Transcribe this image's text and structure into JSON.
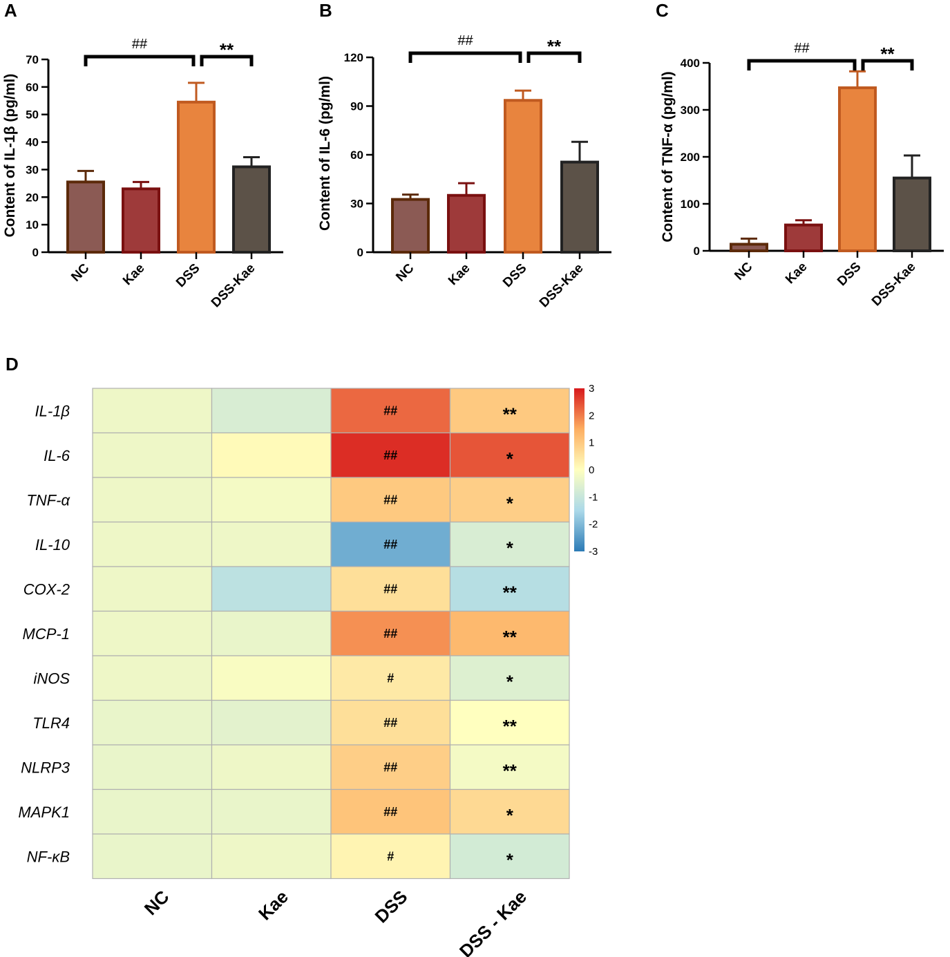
{
  "chart_data": [
    {
      "panel": "A",
      "type": "bar",
      "ylabel": "Content of IL-1β (pg/ml)",
      "categories": [
        "NC",
        "Kae",
        "DSS",
        "DSS-Kae"
      ],
      "values": [
        25.5,
        23,
        54.5,
        31
      ],
      "errors": [
        4,
        2.5,
        7,
        3.5
      ],
      "colors": [
        "#8b5a54",
        "#9e3a3a",
        "#e8843e",
        "#5c5248"
      ],
      "edge_colors": [
        "#5c2a0a",
        "#7a1010",
        "#c05a20",
        "#222222"
      ],
      "ylim": [
        0,
        70
      ],
      "yticks": [
        "0",
        "10",
        "20",
        "30",
        "40",
        "50",
        "60",
        "70"
      ],
      "brackets": [
        {
          "from": 0,
          "to": 2,
          "label": "##"
        },
        {
          "from": 2,
          "to": 3,
          "label": "**"
        }
      ]
    },
    {
      "panel": "B",
      "type": "bar",
      "ylabel": "Content of IL-6 (pg/ml)",
      "categories": [
        "NC",
        "Kae",
        "DSS",
        "DSS-Kae"
      ],
      "values": [
        32.5,
        35,
        93.5,
        55.5
      ],
      "errors": [
        3,
        7.5,
        6,
        12.5
      ],
      "colors": [
        "#8b5a54",
        "#9e3a3a",
        "#e8843e",
        "#5c5248"
      ],
      "edge_colors": [
        "#5c2a0a",
        "#7a1010",
        "#c05a20",
        "#222222"
      ],
      "ylim": [
        0,
        120
      ],
      "yticks": [
        "0",
        "30",
        "60",
        "90",
        "120"
      ],
      "brackets": [
        {
          "from": 0,
          "to": 2,
          "label": "##"
        },
        {
          "from": 2,
          "to": 3,
          "label": "**"
        }
      ]
    },
    {
      "panel": "C",
      "type": "bar",
      "ylabel": "Content of TNF-α (pg/ml)",
      "categories": [
        "NC",
        "Kae",
        "DSS",
        "DSS-Kae"
      ],
      "values": [
        14,
        55,
        347,
        155
      ],
      "errors": [
        12,
        10,
        35,
        48
      ],
      "colors": [
        "#8b5a54",
        "#9e3a3a",
        "#e8843e",
        "#5c5248"
      ],
      "edge_colors": [
        "#5c2a0a",
        "#7a1010",
        "#c05a20",
        "#222222"
      ],
      "ylim": [
        0,
        400
      ],
      "yticks": [
        "0",
        "100",
        "200",
        "300",
        "400"
      ],
      "brackets": [
        {
          "from": 0,
          "to": 2,
          "label": "##"
        },
        {
          "from": 2,
          "to": 3,
          "label": "**"
        }
      ]
    },
    {
      "panel": "D",
      "type": "heatmap",
      "rows": [
        "IL-1β",
        "IL-6",
        "TNF-α",
        "IL-10",
        "COX-2",
        "MCP-1",
        "iNOS",
        "TLR4",
        "NLRP3",
        "MAPK1",
        "NF-κB"
      ],
      "columns": [
        "NC",
        "Kae",
        "DSS",
        "DSS - Kae"
      ],
      "values": [
        [
          -0.3,
          -0.7,
          2.2,
          1.0
        ],
        [
          -0.3,
          0.1,
          2.8,
          2.4
        ],
        [
          -0.3,
          -0.2,
          1.0,
          0.9
        ],
        [
          -0.3,
          -0.3,
          -2.2,
          -0.7
        ],
        [
          -0.3,
          -1.2,
          0.6,
          -1.3
        ],
        [
          -0.3,
          -0.4,
          1.8,
          1.3
        ],
        [
          -0.3,
          -0.1,
          0.4,
          -0.6
        ],
        [
          -0.4,
          -0.5,
          0.6,
          0.0
        ],
        [
          -0.4,
          -0.3,
          0.9,
          -0.2
        ],
        [
          -0.4,
          -0.4,
          1.1,
          0.7
        ],
        [
          -0.4,
          -0.3,
          0.2,
          -0.8
        ]
      ],
      "annotations": [
        [
          "",
          "",
          "##",
          "**"
        ],
        [
          "",
          "",
          "##",
          "*"
        ],
        [
          "",
          "",
          "##",
          "*"
        ],
        [
          "",
          "",
          "##",
          "*"
        ],
        [
          "",
          "",
          "##",
          "**"
        ],
        [
          "",
          "",
          "##",
          "**"
        ],
        [
          "",
          "",
          "#",
          "*"
        ],
        [
          "",
          "",
          "##",
          "**"
        ],
        [
          "",
          "",
          "##",
          "**"
        ],
        [
          "",
          "",
          "##",
          "*"
        ],
        [
          "",
          "",
          "#",
          "*"
        ]
      ],
      "colorbar": {
        "range": [
          -3,
          3
        ],
        "ticks": [
          "3",
          "2",
          "1",
          "0",
          "-1",
          "-2",
          "-3"
        ],
        "colors": [
          "#2c7bb6",
          "#abd9e9",
          "#ffffbf",
          "#fdae61",
          "#d7191c"
        ]
      }
    }
  ]
}
